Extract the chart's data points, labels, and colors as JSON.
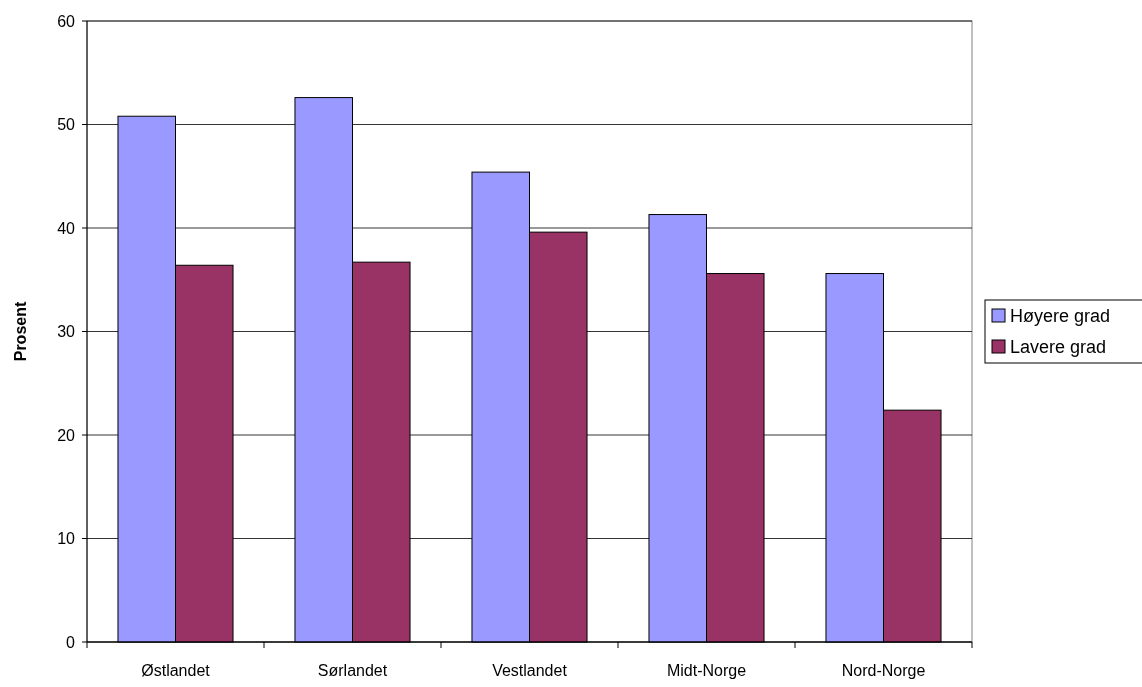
{
  "chart_data": {
    "type": "bar",
    "ylabel": "Prosent",
    "categories": [
      "Østlandet",
      "Sørlandet",
      "Vestlandet",
      "Midt-Norge",
      "Nord-Norge"
    ],
    "series": [
      {
        "name": "Høyere grad",
        "color": "#9999ff",
        "values": [
          50.8,
          52.6,
          45.4,
          41.3,
          35.6
        ]
      },
      {
        "name": "Lavere grad",
        "color": "#993366",
        "values": [
          36.4,
          36.7,
          39.6,
          35.6,
          22.4
        ]
      }
    ],
    "ylim": [
      0,
      60
    ],
    "yticks": [
      0,
      10,
      20,
      30,
      40,
      50,
      60
    ],
    "grid": "y",
    "legend": "right"
  }
}
